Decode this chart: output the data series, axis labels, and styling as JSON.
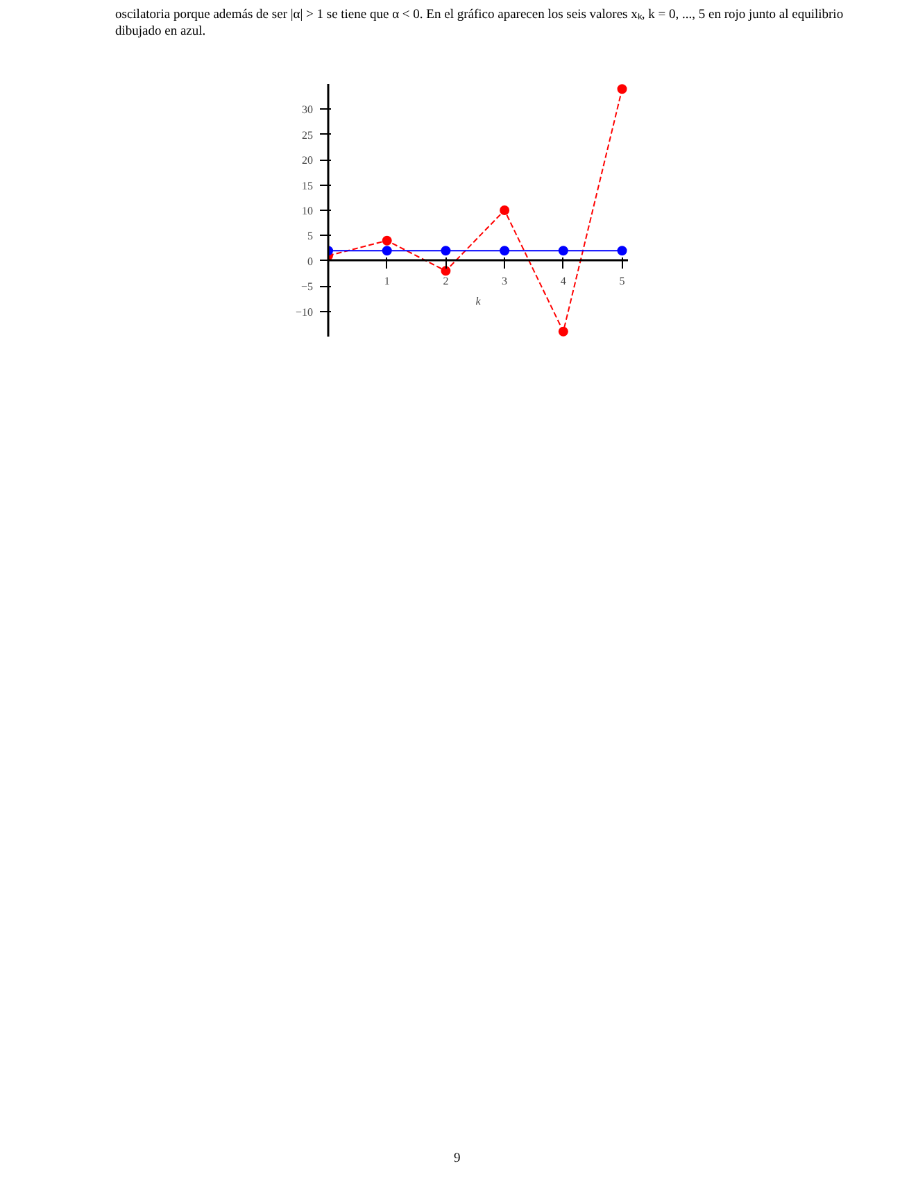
{
  "chart_data": {
    "type": "line",
    "xlabel": "k",
    "x": [
      0,
      1,
      2,
      3,
      4,
      5
    ],
    "series": [
      {
        "color": "#ff0000",
        "values": [
          1,
          4,
          -2,
          10,
          -14,
          34
        ],
        "line_style": "dashed"
      },
      {
        "color": "#0000ff",
        "values": [
          2,
          2,
          2,
          2,
          2,
          2
        ],
        "line_style": "solid"
      }
    ],
    "xlim": [
      0,
      5.1
    ],
    "ylim": [
      -15,
      35
    ],
    "xticks": [
      1,
      2,
      3,
      4,
      5
    ],
    "yticks": [
      -10,
      -5,
      0,
      5,
      10,
      15,
      20,
      25,
      30
    ],
    "marker": "circle",
    "grid": false,
    "annotations": [
      "oscilatoria porque además de ser |α| > 1 se tiene que α < 0. En el gráfico aparecen los seis valores xₖ, k = 0, ..., 5 en rojo junto al equilibrio dibujado en azul.",
      "9"
    ]
  }
}
